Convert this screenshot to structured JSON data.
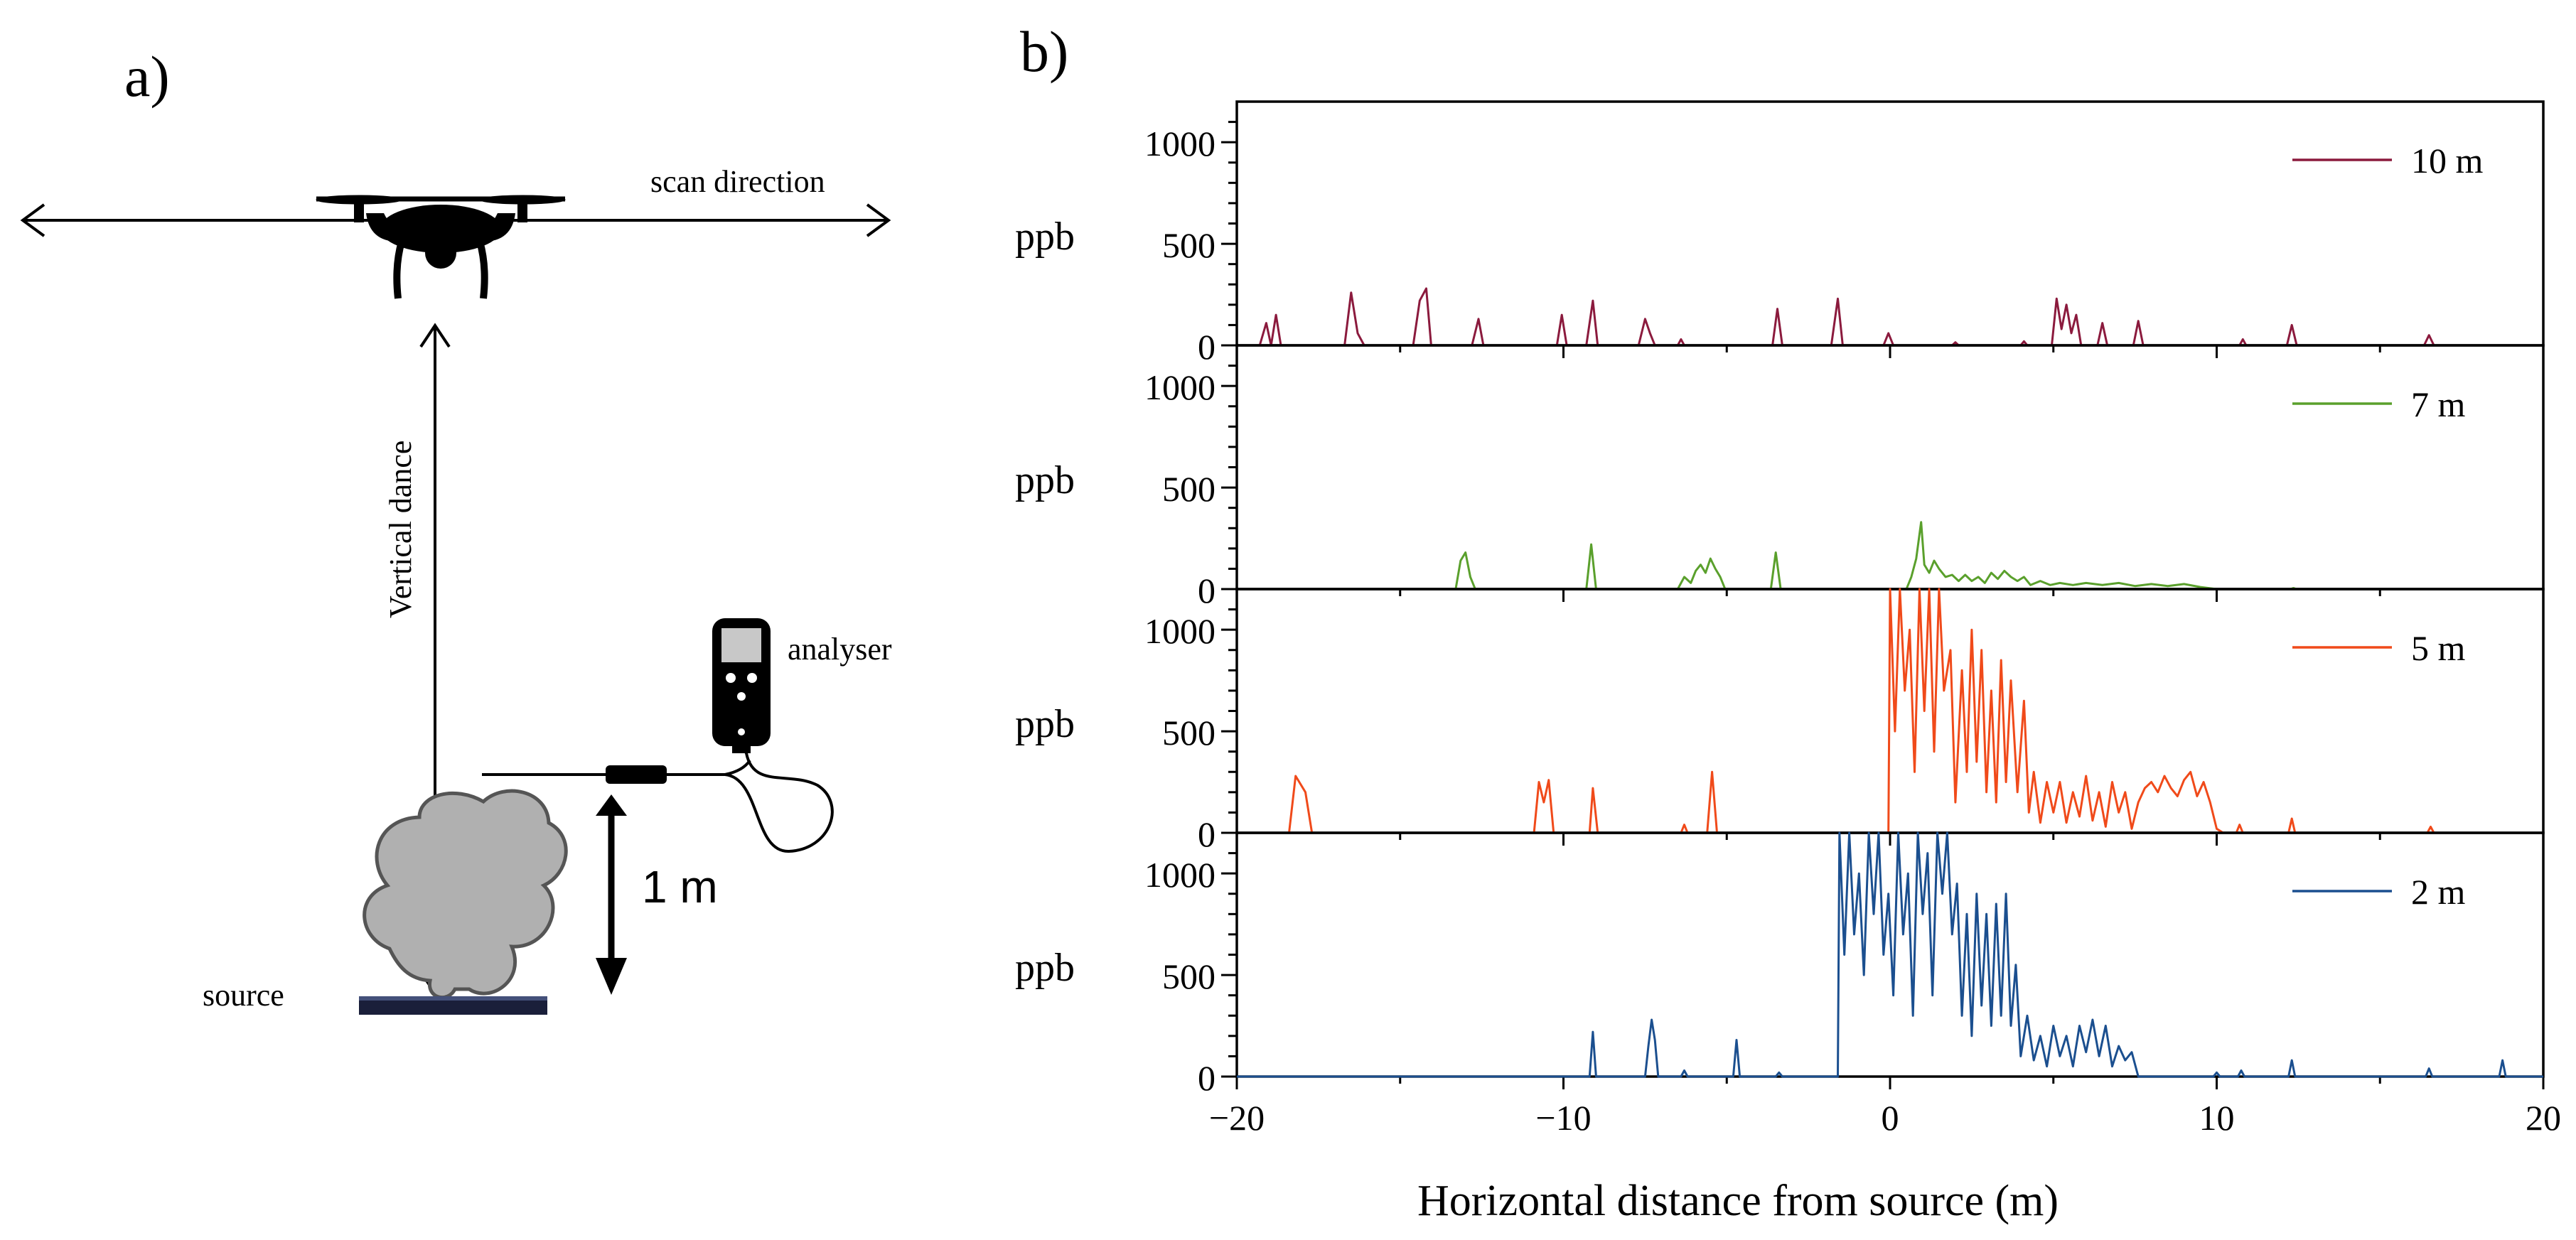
{
  "panel_a": {
    "label": "a)",
    "scan_direction": "scan direction",
    "vertical_dance": "Vertical dance",
    "analyser": "analyser",
    "source": "source",
    "height": "1 m",
    "colors": {
      "line": "#000000",
      "cloud": "#b0b0b0",
      "cloud_edge": "#555555",
      "plate": "#1a1f3a"
    }
  },
  "chart_data": {
    "type": "line",
    "label": "b)",
    "xlabel": "Horizontal distance from source (m)",
    "ylabel": "ppb",
    "xlim": [
      -20,
      20
    ],
    "xticks": [
      "−20",
      "−10",
      "0",
      "10",
      "20"
    ],
    "xtick_values": [
      -20,
      -10,
      0,
      10,
      20
    ],
    "ylim": [
      0,
      1200
    ],
    "yticks": [
      "0",
      "500",
      "1000"
    ],
    "ytick_values": [
      0,
      500,
      1000
    ],
    "series": [
      {
        "name": "10 m",
        "color": "#8b1a3d",
        "points": [
          [
            -20,
            0
          ],
          [
            -19.3,
            0
          ],
          [
            -19.1,
            110
          ],
          [
            -18.95,
            0
          ],
          [
            -18.8,
            150
          ],
          [
            -18.65,
            0
          ],
          [
            -16.7,
            0
          ],
          [
            -16.5,
            260
          ],
          [
            -16.3,
            60
          ],
          [
            -16.1,
            0
          ],
          [
            -14.6,
            0
          ],
          [
            -14.4,
            220
          ],
          [
            -14.2,
            280
          ],
          [
            -14.05,
            0
          ],
          [
            -12.8,
            0
          ],
          [
            -12.6,
            130
          ],
          [
            -12.45,
            0
          ],
          [
            -10.2,
            0
          ],
          [
            -10.05,
            150
          ],
          [
            -9.9,
            0
          ],
          [
            -9.3,
            0
          ],
          [
            -9.1,
            220
          ],
          [
            -8.95,
            0
          ],
          [
            -7.7,
            0
          ],
          [
            -7.5,
            130
          ],
          [
            -7.35,
            60
          ],
          [
            -7.2,
            0
          ],
          [
            -6.5,
            0
          ],
          [
            -6.4,
            30
          ],
          [
            -6.3,
            0
          ],
          [
            -3.6,
            0
          ],
          [
            -3.45,
            180
          ],
          [
            -3.3,
            0
          ],
          [
            -1.8,
            0
          ],
          [
            -1.6,
            230
          ],
          [
            -1.45,
            0
          ],
          [
            -0.2,
            0
          ],
          [
            -0.05,
            60
          ],
          [
            0.1,
            0
          ],
          [
            1.9,
            0
          ],
          [
            2.0,
            15
          ],
          [
            2.1,
            0
          ],
          [
            4.0,
            0
          ],
          [
            4.1,
            20
          ],
          [
            4.2,
            0
          ],
          [
            4.95,
            0
          ],
          [
            5.1,
            230
          ],
          [
            5.25,
            80
          ],
          [
            5.4,
            200
          ],
          [
            5.55,
            60
          ],
          [
            5.7,
            150
          ],
          [
            5.85,
            0
          ],
          [
            6.35,
            0
          ],
          [
            6.5,
            110
          ],
          [
            6.65,
            0
          ],
          [
            7.45,
            0
          ],
          [
            7.6,
            120
          ],
          [
            7.75,
            0
          ],
          [
            10.7,
            0
          ],
          [
            10.8,
            30
          ],
          [
            10.9,
            0
          ],
          [
            12.15,
            0
          ],
          [
            12.3,
            100
          ],
          [
            12.45,
            0
          ],
          [
            16.35,
            0
          ],
          [
            16.5,
            50
          ],
          [
            16.65,
            0
          ],
          [
            20,
            0
          ]
        ]
      },
      {
        "name": "7 m",
        "color": "#5aa02c",
        "points": [
          [
            -20,
            0
          ],
          [
            -13.3,
            0
          ],
          [
            -13.15,
            140
          ],
          [
            -13.0,
            180
          ],
          [
            -12.85,
            60
          ],
          [
            -12.7,
            0
          ],
          [
            -9.3,
            0
          ],
          [
            -9.15,
            220
          ],
          [
            -9.0,
            0
          ],
          [
            -6.5,
            0
          ],
          [
            -6.3,
            60
          ],
          [
            -6.1,
            30
          ],
          [
            -5.95,
            90
          ],
          [
            -5.8,
            120
          ],
          [
            -5.65,
            80
          ],
          [
            -5.5,
            150
          ],
          [
            -5.35,
            100
          ],
          [
            -5.2,
            60
          ],
          [
            -5.05,
            0
          ],
          [
            -3.65,
            0
          ],
          [
            -3.5,
            180
          ],
          [
            -3.35,
            0
          ],
          [
            0.5,
            0
          ],
          [
            0.65,
            60
          ],
          [
            0.8,
            150
          ],
          [
            0.95,
            330
          ],
          [
            1.05,
            120
          ],
          [
            1.2,
            80
          ],
          [
            1.35,
            140
          ],
          [
            1.5,
            100
          ],
          [
            1.7,
            60
          ],
          [
            1.9,
            70
          ],
          [
            2.1,
            40
          ],
          [
            2.3,
            70
          ],
          [
            2.5,
            40
          ],
          [
            2.7,
            60
          ],
          [
            2.9,
            30
          ],
          [
            3.1,
            80
          ],
          [
            3.3,
            50
          ],
          [
            3.5,
            90
          ],
          [
            3.7,
            60
          ],
          [
            3.9,
            40
          ],
          [
            4.1,
            60
          ],
          [
            4.3,
            20
          ],
          [
            4.6,
            40
          ],
          [
            4.9,
            20
          ],
          [
            5.2,
            30
          ],
          [
            5.6,
            20
          ],
          [
            6.0,
            30
          ],
          [
            6.5,
            20
          ],
          [
            7.0,
            30
          ],
          [
            7.5,
            15
          ],
          [
            8.0,
            25
          ],
          [
            8.5,
            15
          ],
          [
            9.0,
            25
          ],
          [
            9.5,
            10
          ],
          [
            10.0,
            0
          ],
          [
            12.25,
            0
          ],
          [
            12.35,
            5
          ],
          [
            12.45,
            0
          ],
          [
            20,
            0
          ]
        ]
      },
      {
        "name": "5 m",
        "color": "#f04a1a",
        "points": [
          [
            -20,
            0
          ],
          [
            -18.4,
            0
          ],
          [
            -18.2,
            280
          ],
          [
            -17.9,
            200
          ],
          [
            -17.7,
            0
          ],
          [
            -10.9,
            0
          ],
          [
            -10.75,
            250
          ],
          [
            -10.6,
            150
          ],
          [
            -10.45,
            260
          ],
          [
            -10.3,
            0
          ],
          [
            -9.2,
            0
          ],
          [
            -9.1,
            220
          ],
          [
            -8.95,
            0
          ],
          [
            -6.4,
            0
          ],
          [
            -6.3,
            40
          ],
          [
            -6.2,
            0
          ],
          [
            -5.6,
            0
          ],
          [
            -5.45,
            300
          ],
          [
            -5.3,
            0
          ],
          [
            -0.05,
            0
          ],
          [
            0,
            1200
          ],
          [
            0.15,
            500
          ],
          [
            0.3,
            1200
          ],
          [
            0.45,
            700
          ],
          [
            0.6,
            1000
          ],
          [
            0.75,
            300
          ],
          [
            0.9,
            1200
          ],
          [
            1.05,
            600
          ],
          [
            1.2,
            1200
          ],
          [
            1.35,
            400
          ],
          [
            1.5,
            1200
          ],
          [
            1.65,
            700
          ],
          [
            1.85,
            900
          ],
          [
            2.0,
            150
          ],
          [
            2.2,
            800
          ],
          [
            2.35,
            300
          ],
          [
            2.5,
            1000
          ],
          [
            2.65,
            350
          ],
          [
            2.8,
            900
          ],
          [
            2.95,
            200
          ],
          [
            3.1,
            700
          ],
          [
            3.25,
            150
          ],
          [
            3.4,
            850
          ],
          [
            3.55,
            250
          ],
          [
            3.7,
            750
          ],
          [
            3.9,
            200
          ],
          [
            4.1,
            650
          ],
          [
            4.25,
            100
          ],
          [
            4.4,
            300
          ],
          [
            4.6,
            50
          ],
          [
            4.8,
            250
          ],
          [
            5.0,
            100
          ],
          [
            5.2,
            250
          ],
          [
            5.4,
            50
          ],
          [
            5.6,
            200
          ],
          [
            5.8,
            80
          ],
          [
            6.0,
            280
          ],
          [
            6.2,
            60
          ],
          [
            6.4,
            200
          ],
          [
            6.6,
            30
          ],
          [
            6.8,
            250
          ],
          [
            7.0,
            100
          ],
          [
            7.2,
            200
          ],
          [
            7.4,
            20
          ],
          [
            7.6,
            150
          ],
          [
            7.8,
            220
          ],
          [
            8.0,
            250
          ],
          [
            8.2,
            200
          ],
          [
            8.4,
            280
          ],
          [
            8.6,
            220
          ],
          [
            8.8,
            180
          ],
          [
            9.0,
            260
          ],
          [
            9.2,
            300
          ],
          [
            9.4,
            180
          ],
          [
            9.6,
            250
          ],
          [
            9.8,
            150
          ],
          [
            10.0,
            20
          ],
          [
            10.2,
            0
          ],
          [
            10.6,
            0
          ],
          [
            10.7,
            40
          ],
          [
            10.8,
            0
          ],
          [
            12.2,
            0
          ],
          [
            12.3,
            70
          ],
          [
            12.4,
            0
          ],
          [
            16.45,
            0
          ],
          [
            16.55,
            30
          ],
          [
            16.65,
            0
          ],
          [
            20,
            0
          ]
        ]
      },
      {
        "name": "2 m",
        "color": "#1b4f8f",
        "points": [
          [
            -20,
            0
          ],
          [
            -9.2,
            0
          ],
          [
            -9.1,
            220
          ],
          [
            -9.0,
            0
          ],
          [
            -7.5,
            0
          ],
          [
            -7.4,
            150
          ],
          [
            -7.3,
            280
          ],
          [
            -7.2,
            180
          ],
          [
            -7.1,
            0
          ],
          [
            -6.4,
            0
          ],
          [
            -6.3,
            30
          ],
          [
            -6.2,
            0
          ],
          [
            -4.8,
            0
          ],
          [
            -4.7,
            180
          ],
          [
            -4.6,
            0
          ],
          [
            -3.5,
            0
          ],
          [
            -3.4,
            20
          ],
          [
            -3.3,
            0
          ],
          [
            -1.6,
            0
          ],
          [
            -1.55,
            1200
          ],
          [
            -1.4,
            600
          ],
          [
            -1.25,
            1200
          ],
          [
            -1.1,
            700
          ],
          [
            -0.95,
            1000
          ],
          [
            -0.8,
            500
          ],
          [
            -0.65,
            1200
          ],
          [
            -0.5,
            800
          ],
          [
            -0.35,
            1200
          ],
          [
            -0.2,
            600
          ],
          [
            -0.05,
            900
          ],
          [
            0.1,
            400
          ],
          [
            0.25,
            1200
          ],
          [
            0.4,
            700
          ],
          [
            0.55,
            1000
          ],
          [
            0.7,
            300
          ],
          [
            0.85,
            1200
          ],
          [
            1.0,
            800
          ],
          [
            1.15,
            1100
          ],
          [
            1.3,
            400
          ],
          [
            1.45,
            1200
          ],
          [
            1.6,
            900
          ],
          [
            1.75,
            1200
          ],
          [
            1.9,
            700
          ],
          [
            2.05,
            950
          ],
          [
            2.2,
            300
          ],
          [
            2.35,
            800
          ],
          [
            2.5,
            200
          ],
          [
            2.65,
            900
          ],
          [
            2.8,
            350
          ],
          [
            2.95,
            800
          ],
          [
            3.1,
            250
          ],
          [
            3.25,
            850
          ],
          [
            3.4,
            300
          ],
          [
            3.55,
            900
          ],
          [
            3.7,
            250
          ],
          [
            3.85,
            550
          ],
          [
            4.0,
            100
          ],
          [
            4.2,
            300
          ],
          [
            4.4,
            80
          ],
          [
            4.6,
            200
          ],
          [
            4.8,
            50
          ],
          [
            5.0,
            250
          ],
          [
            5.2,
            100
          ],
          [
            5.4,
            200
          ],
          [
            5.6,
            50
          ],
          [
            5.8,
            250
          ],
          [
            6.0,
            120
          ],
          [
            6.2,
            280
          ],
          [
            6.4,
            100
          ],
          [
            6.6,
            250
          ],
          [
            6.8,
            50
          ],
          [
            7.0,
            150
          ],
          [
            7.2,
            80
          ],
          [
            7.4,
            120
          ],
          [
            7.6,
            0
          ],
          [
            9.9,
            0
          ],
          [
            10.0,
            20
          ],
          [
            10.1,
            0
          ],
          [
            10.65,
            0
          ],
          [
            10.75,
            30
          ],
          [
            10.85,
            0
          ],
          [
            12.2,
            0
          ],
          [
            12.3,
            80
          ],
          [
            12.4,
            0
          ],
          [
            16.4,
            0
          ],
          [
            16.5,
            40
          ],
          [
            16.6,
            0
          ],
          [
            18.65,
            0
          ],
          [
            18.75,
            80
          ],
          [
            18.85,
            0
          ],
          [
            20,
            0
          ]
        ]
      }
    ]
  }
}
